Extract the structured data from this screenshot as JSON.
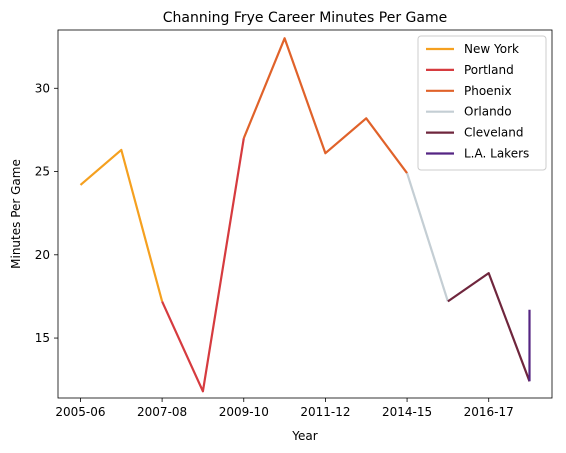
{
  "chart_data": {
    "type": "line",
    "title": "Channing Frye Career Minutes Per Game",
    "xlabel": "Year",
    "ylabel": "Minutes Per Game",
    "x_tick_labels": [
      "2005-06",
      "2007-08",
      "2009-10",
      "2011-12",
      "2014-15",
      "2016-17"
    ],
    "x_tick_positions": [
      0,
      2,
      4,
      6,
      8,
      10
    ],
    "xlim": [
      -0.55,
      11.55
    ],
    "yticks": [
      15,
      20,
      25,
      30
    ],
    "ylim": [
      11.4,
      33.5
    ],
    "grid": false,
    "legend_position": "top-right",
    "series": [
      {
        "name": "New York",
        "color": "#F5A01F",
        "x": [
          0,
          1,
          2
        ],
        "y": [
          24.2,
          26.3,
          17.2
        ]
      },
      {
        "name": "Portland",
        "color": "#D63B3F",
        "x": [
          2,
          3,
          4
        ],
        "y": [
          17.2,
          11.8,
          27.0
        ]
      },
      {
        "name": "Phoenix",
        "color": "#E0622A",
        "x": [
          4,
          5,
          6,
          7,
          8
        ],
        "y": [
          27.0,
          33.0,
          26.1,
          28.2,
          24.9
        ]
      },
      {
        "name": "Orlando",
        "color": "#C4CED4",
        "x": [
          8,
          9
        ],
        "y": [
          24.9,
          17.2
        ]
      },
      {
        "name": "Cleveland",
        "color": "#6F263D",
        "x": [
          9,
          10,
          11
        ],
        "y": [
          17.2,
          18.9,
          12.4
        ]
      },
      {
        "name": "L.A. Lakers",
        "color": "#552583",
        "x": [
          11,
          11
        ],
        "y": [
          12.4,
          16.7
        ]
      }
    ]
  }
}
